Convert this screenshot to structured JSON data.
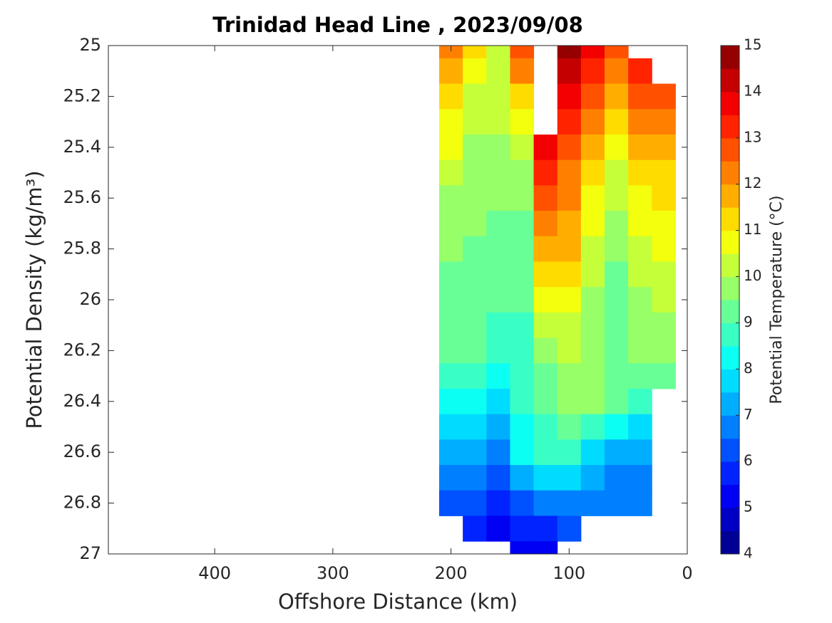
{
  "chart_data": {
    "type": "contour",
    "title": "Trinidad Head Line , 2023/09/08",
    "xlabel": "Offshore Distance (km)",
    "ylabel": "Potential Density (kg/m³)",
    "colorbar_label": "Potential Temperature (°C)",
    "x": [
      200,
      180,
      160,
      140,
      120,
      100,
      80,
      60,
      40,
      20
    ],
    "y": [
      25.0,
      25.1,
      25.2,
      25.3,
      25.4,
      25.5,
      25.6,
      25.7,
      25.8,
      25.9,
      26.0,
      26.1,
      26.2,
      26.3,
      26.4,
      26.5,
      26.6,
      26.7,
      26.8,
      26.9,
      27.0
    ],
    "z": [
      [
        12,
        11,
        10.2,
        12.5,
        null,
        14.5,
        13.5,
        12.5,
        null,
        null
      ],
      [
        11.5,
        10.5,
        10.1,
        12,
        null,
        14,
        13,
        12,
        13,
        null
      ],
      [
        11,
        10.3,
        10,
        11,
        null,
        13.5,
        12.5,
        11.5,
        12.7,
        12.5
      ],
      [
        10.5,
        10,
        10,
        10.5,
        null,
        13,
        12,
        11,
        12,
        12.2
      ],
      [
        10.5,
        9.8,
        9.9,
        10,
        13.5,
        12.5,
        11.5,
        10.5,
        11.5,
        11.8
      ],
      [
        10,
        9.6,
        9.7,
        9.7,
        13,
        12.2,
        11.2,
        10.2,
        11.2,
        11.4
      ],
      [
        9.5,
        9.5,
        9.6,
        9.5,
        12.5,
        12,
        10.8,
        10,
        10.8,
        11
      ],
      [
        9.5,
        9.5,
        9.4,
        9.3,
        12,
        11.7,
        10.5,
        9.8,
        10.5,
        10.7
      ],
      [
        9.5,
        9.4,
        9.3,
        9.2,
        11.5,
        11.5,
        10.2,
        9.6,
        10.2,
        10.5
      ],
      [
        9.4,
        9.2,
        9.1,
        9.1,
        11,
        11,
        10,
        9.4,
        10,
        10.2
      ],
      [
        9.2,
        9.1,
        9,
        9,
        10.5,
        10.7,
        9.8,
        9.3,
        9.8,
        10
      ],
      [
        9.1,
        9,
        8.8,
        8.9,
        10,
        10.3,
        9.8,
        9.3,
        9.6,
        9.7
      ],
      [
        9.1,
        9,
        8.6,
        8.8,
        9.5,
        10,
        9.8,
        9.3,
        9.5,
        9.5
      ],
      [
        8.8,
        8.8,
        8.2,
        8.7,
        9.2,
        9.7,
        9.6,
        9.2,
        9,
        9.2
      ],
      [
        8,
        8,
        7.6,
        8.6,
        9,
        9.5,
        9.5,
        9.2,
        8.5,
        null
      ],
      [
        7.5,
        7.5,
        7.2,
        8.4,
        8.8,
        9,
        8.8,
        8.3,
        7.5,
        null
      ],
      [
        7,
        7,
        6.8,
        8.3,
        8.6,
        8.5,
        7.5,
        7.3,
        7,
        null
      ],
      [
        6.5,
        6.5,
        6.2,
        7,
        7.5,
        7.5,
        7,
        6.8,
        6.8,
        null
      ],
      [
        6,
        6,
        5.8,
        6.2,
        6.5,
        6.5,
        6.5,
        6.7,
        6.8,
        null
      ],
      [
        null,
        5.5,
        5.3,
        5.5,
        5.8,
        6,
        null,
        null,
        null,
        null
      ],
      [
        null,
        null,
        null,
        5,
        5.2,
        null,
        null,
        null,
        null,
        null
      ]
    ],
    "xlim": [
      490,
      0
    ],
    "xticks": [
      400,
      300,
      200,
      100,
      0
    ],
    "ylim": [
      25,
      27
    ],
    "yticks": [
      25,
      25.2,
      25.4,
      25.6,
      25.8,
      26,
      26.2,
      26.4,
      26.6,
      26.8,
      27
    ],
    "clim": [
      4,
      15
    ],
    "cticks": [
      4,
      5,
      6,
      7,
      8,
      9,
      10,
      11,
      12,
      13,
      14,
      15
    ],
    "contour_step": 0.5,
    "colormap": "jet",
    "y_reversed": true
  }
}
